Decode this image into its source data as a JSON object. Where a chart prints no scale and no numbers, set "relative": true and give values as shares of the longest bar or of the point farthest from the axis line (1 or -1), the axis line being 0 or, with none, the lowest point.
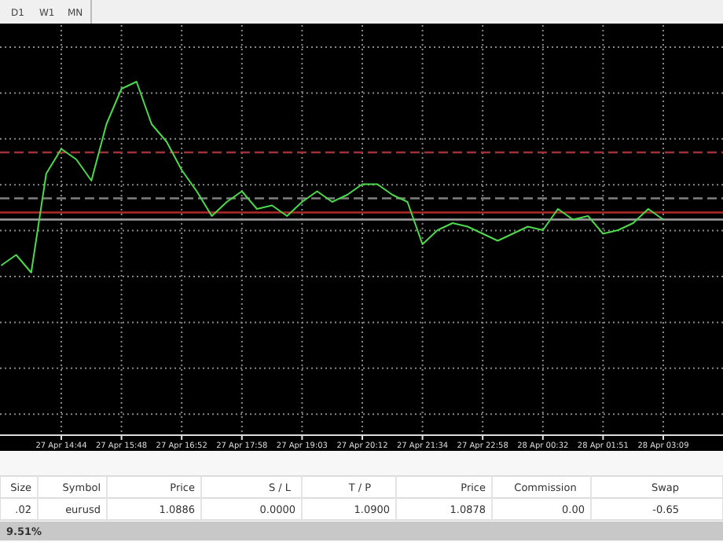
{
  "chart_data": [
    {
      "type": "line",
      "relative": true,
      "grid": true,
      "annotations": [
        "D1",
        "W1",
        "MN"
      ],
      "categories": [
        null,
        null,
        null,
        null,
        "27 Apr 14:44",
        null,
        null,
        null,
        "27 Apr 15:48",
        null,
        null,
        null,
        "27 Apr 16:52",
        null,
        null,
        null,
        "27 Apr 17:58",
        null,
        null,
        null,
        "27 Apr 19:03",
        null,
        null,
        null,
        "27 Apr 20:12",
        null,
        null,
        null,
        "27 Apr 21:34",
        null,
        null,
        null,
        "27 Apr 22:58",
        null,
        null,
        null,
        "28 Apr 00:32",
        null,
        null,
        null,
        "28 Apr 01:51",
        null,
        null,
        null,
        "28 Apr 03:09"
      ],
      "series": [
        {
          "color": "#4cd94c",
          "values": [
            0.48,
            0.51,
            0.46,
            0.74,
            0.81,
            0.78,
            0.72,
            0.88,
            0.98,
            1,
            0.88,
            0.83,
            0.75,
            0.69,
            0.62,
            0.66,
            0.69,
            0.64,
            0.65,
            0.62,
            0.66,
            0.69,
            0.66,
            0.68,
            0.71,
            0.71,
            0.68,
            0.66,
            0.54,
            0.58,
            0.6,
            0.59,
            0.57,
            0.55,
            0.57,
            0.59,
            0.58,
            0.64,
            0.61,
            0.62,
            0.57,
            0.58,
            0.6,
            0.64,
            0.61
          ]
        }
      ],
      "ref_lines": [
        {
          "axis": "y",
          "value": 0.8,
          "color": "#a0303a",
          "line_style": "dashed"
        },
        {
          "axis": "y",
          "value": 0.67,
          "color": "#808080",
          "line_style": "dashed"
        },
        {
          "axis": "y",
          "value": 0.63,
          "color": "#b02a2a",
          "line_style": "solid"
        },
        {
          "axis": "y",
          "value": 0.61,
          "color": "#a0a0a0",
          "line_style": "solid"
        }
      ]
    },
    {
      "type": "other",
      "annotations": [
        "Size",
        "Symbol",
        "Price",
        "S / L",
        "T / P",
        "Price",
        "Commission",
        "Swap",
        ".02",
        "eurusd",
        "1.0886",
        "0.0000",
        "1.0900",
        "1.0878",
        "0.00",
        "-0.65",
        "9.51%"
      ]
    }
  ]
}
